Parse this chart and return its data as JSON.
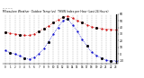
{
  "title_line1": "Milwaukee Weather  Outdoor Temp (vs)  THSW Index per Hour (Last 24 Hours)",
  "title_line2": "-- -- -- --",
  "hours": [
    0,
    1,
    2,
    3,
    4,
    5,
    6,
    7,
    8,
    9,
    10,
    11,
    12,
    13,
    14,
    15,
    16,
    17,
    18,
    19,
    20,
    21,
    22,
    23
  ],
  "temp": [
    33,
    31,
    30,
    29,
    28,
    28,
    30,
    34,
    38,
    42,
    47,
    51,
    55,
    57,
    54,
    50,
    47,
    44,
    41,
    39,
    38,
    37,
    37,
    36
  ],
  "thsw": [
    5,
    2,
    0,
    -3,
    -6,
    -8,
    -5,
    0,
    8,
    18,
    30,
    40,
    50,
    53,
    44,
    34,
    22,
    12,
    3,
    -2,
    -6,
    -9,
    -11,
    -10
  ],
  "temp_color": "#cc0000",
  "thsw_color": "#0000cc",
  "marker_color": "#000000",
  "ylim": [
    -15,
    60
  ],
  "ytick_labels": [
    "60",
    "50",
    "40",
    "30",
    "20",
    "10",
    "0",
    "-10"
  ],
  "ytick_values": [
    60,
    50,
    40,
    30,
    20,
    10,
    0,
    -10
  ],
  "background": "#ffffff",
  "grid_color": "#888888",
  "vline_x": 23
}
